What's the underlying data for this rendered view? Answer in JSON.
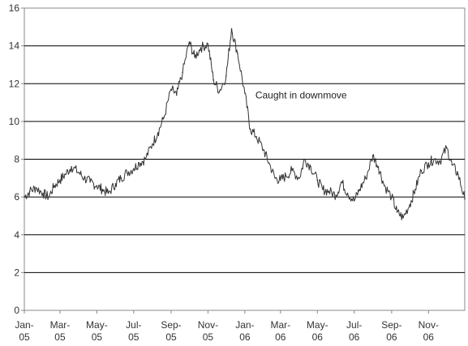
{
  "chart_data": {
    "type": "line",
    "title": "",
    "xlabel": "",
    "ylabel": "",
    "ylim": [
      0,
      16
    ],
    "y_ticks": [
      0,
      2,
      4,
      6,
      8,
      10,
      12,
      14,
      16
    ],
    "grid": "horizontal",
    "x_ticks": [
      {
        "label_line1": "Jan-",
        "label_line2": "05",
        "date": "2005-01-01"
      },
      {
        "label_line1": "Mar-",
        "label_line2": "05",
        "date": "2005-03-01"
      },
      {
        "label_line1": "May-",
        "label_line2": "05",
        "date": "2005-05-01"
      },
      {
        "label_line1": "Jul-",
        "label_line2": "05",
        "date": "2005-07-01"
      },
      {
        "label_line1": "Sep-",
        "label_line2": "05",
        "date": "2005-09-01"
      },
      {
        "label_line1": "Nov-",
        "label_line2": "05",
        "date": "2005-11-01"
      },
      {
        "label_line1": "Jan-",
        "label_line2": "06",
        "date": "2006-01-01"
      },
      {
        "label_line1": "Mar-",
        "label_line2": "06",
        "date": "2006-03-01"
      },
      {
        "label_line1": "May-",
        "label_line2": "06",
        "date": "2006-05-01"
      },
      {
        "label_line1": "Jul-",
        "label_line2": "06",
        "date": "2006-07-01"
      },
      {
        "label_line1": "Sep-",
        "label_line2": "06",
        "date": "2006-09-01"
      },
      {
        "label_line1": "Nov-",
        "label_line2": "06",
        "date": "2006-11-01"
      }
    ],
    "x_range": [
      "2005-01-01",
      "2006-12-31"
    ],
    "line_color": "#333333",
    "annotations": [
      {
        "text": "Caught in downmove",
        "date": "2006-01-05",
        "y": 11.0
      }
    ],
    "series": [
      {
        "x": [
          "2005-01-01",
          "2005-01-10",
          "2005-01-20",
          "2005-02-01",
          "2005-02-10",
          "2005-02-20",
          "2005-03-01",
          "2005-03-10",
          "2005-03-20",
          "2005-04-01",
          "2005-04-10",
          "2005-04-20",
          "2005-05-01",
          "2005-05-10",
          "2005-05-20",
          "2005-06-01",
          "2005-06-10",
          "2005-06-20",
          "2005-07-01",
          "2005-07-10",
          "2005-07-20",
          "2005-08-01",
          "2005-08-10",
          "2005-08-20",
          "2005-09-01",
          "2005-09-10",
          "2005-09-20",
          "2005-10-01",
          "2005-10-10",
          "2005-10-20",
          "2005-11-01",
          "2005-11-10",
          "2005-11-20",
          "2005-12-01",
          "2005-12-10",
          "2005-12-20",
          "2006-01-01",
          "2006-01-10",
          "2006-01-20",
          "2006-02-01",
          "2006-02-10",
          "2006-02-20",
          "2006-03-01",
          "2006-03-10",
          "2006-03-20",
          "2006-04-01",
          "2006-04-10",
          "2006-04-20",
          "2006-05-01",
          "2006-05-10",
          "2006-05-20",
          "2006-06-01",
          "2006-06-10",
          "2006-06-20",
          "2006-07-01",
          "2006-07-10",
          "2006-07-20",
          "2006-08-01",
          "2006-08-10",
          "2006-08-20",
          "2006-09-01",
          "2006-09-10",
          "2006-09-20",
          "2006-10-01",
          "2006-10-10",
          "2006-10-20",
          "2006-11-01",
          "2006-11-10",
          "2006-11-20",
          "2006-12-01",
          "2006-12-10",
          "2006-12-20",
          "2006-12-31"
        ],
        "values": [
          6.0,
          6.3,
          6.5,
          6.2,
          6.0,
          6.6,
          6.9,
          7.2,
          7.6,
          7.3,
          7.0,
          6.8,
          6.6,
          6.4,
          6.2,
          6.7,
          7.0,
          7.3,
          7.5,
          7.8,
          8.0,
          8.8,
          9.4,
          10.2,
          11.7,
          11.4,
          12.6,
          14.2,
          13.4,
          13.9,
          14.1,
          12.2,
          11.6,
          12.4,
          14.9,
          13.6,
          11.5,
          9.6,
          9.2,
          8.5,
          7.8,
          7.0,
          6.9,
          7.1,
          7.4,
          7.0,
          8.0,
          7.6,
          6.9,
          6.4,
          6.3,
          6.1,
          6.8,
          6.2,
          5.8,
          6.4,
          7.0,
          8.2,
          7.6,
          6.6,
          6.0,
          5.2,
          4.9,
          5.6,
          6.4,
          7.4,
          7.8,
          8.0,
          7.9,
          8.6,
          7.7,
          7.2,
          5.9
        ]
      }
    ]
  }
}
